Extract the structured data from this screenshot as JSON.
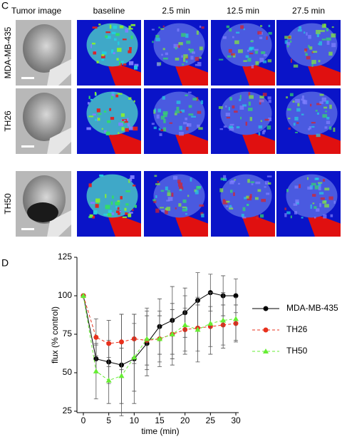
{
  "panel_c": {
    "panel_label": "C",
    "column_headers": [
      "Tumor image",
      "baseline",
      "2.5 min",
      "12.5 min",
      "27.5 min"
    ],
    "row_labels": [
      "MDA-MB-435",
      "TH26",
      "TH50"
    ]
  },
  "chart_data": {
    "type": "line",
    "panel_label": "D",
    "x_label": "time (min)",
    "y_label": "flux (% control)",
    "x": [
      0,
      2.5,
      5,
      7.5,
      10,
      12.5,
      15,
      17.5,
      20,
      22.5,
      25,
      27.5,
      30
    ],
    "series": [
      {
        "name": "MDA-MB-435",
        "color": "#000000",
        "marker": "circle",
        "dashed": false,
        "values": [
          100,
          59,
          57,
          55,
          59,
          69,
          80,
          84,
          89,
          97,
          102,
          100,
          100
        ],
        "errors": [
          0,
          9,
          14,
          33,
          29,
          21,
          18,
          22,
          16,
          18,
          12,
          13,
          11
        ]
      },
      {
        "name": "TH26",
        "color": "#e8301c",
        "marker": "circle",
        "dashed": true,
        "values": [
          100,
          73,
          69,
          70,
          72,
          71,
          72,
          75,
          78,
          79,
          80,
          81,
          82
        ],
        "errors": [
          0,
          12,
          15,
          18,
          16,
          16,
          15,
          16,
          14,
          15,
          13,
          13,
          12
        ]
      },
      {
        "name": "TH50",
        "color": "#66ee33",
        "marker": "triangle",
        "dashed": true,
        "values": [
          100,
          51,
          45,
          48,
          60,
          72,
          72,
          75,
          81,
          78,
          82,
          84,
          85
        ],
        "errors": [
          0,
          18,
          15,
          18,
          22,
          20,
          18,
          20,
          19,
          21,
          20,
          18,
          14
        ]
      }
    ],
    "xlim": [
      0,
      30
    ],
    "xticks": [
      0,
      5,
      10,
      15,
      20,
      25,
      30
    ],
    "ylim": [
      25,
      125
    ],
    "yticks": [
      25,
      50,
      75,
      100,
      125
    ],
    "legend": "right"
  }
}
